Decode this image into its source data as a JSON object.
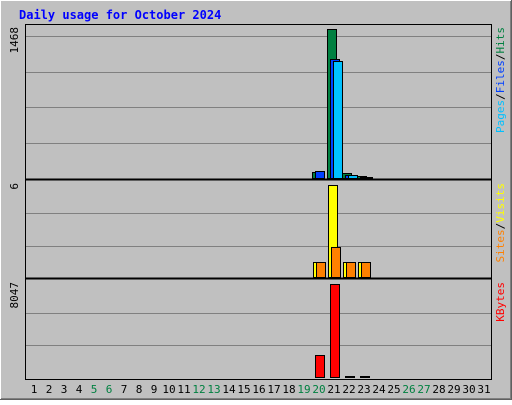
{
  "chart_data": {
    "type": "bar",
    "title": "Daily usage for October 2024",
    "categories": [
      "1",
      "2",
      "3",
      "4",
      "5",
      "6",
      "7",
      "8",
      "9",
      "10",
      "11",
      "12",
      "13",
      "14",
      "15",
      "16",
      "17",
      "18",
      "19",
      "20",
      "21",
      "22",
      "23",
      "24",
      "25",
      "26",
      "27",
      "28",
      "29",
      "30",
      "31"
    ],
    "weekend_days": [
      "5",
      "6",
      "12",
      "13",
      "19",
      "20",
      "26",
      "27"
    ],
    "panels": [
      {
        "name": "hits_files_pages",
        "ymax_label": "1468",
        "ylim": [
          0,
          1468
        ],
        "grid": true,
        "legend": [
          {
            "text": "Pages",
            "color": "#00c0ff"
          },
          {
            "text": "/",
            "color": "#000000"
          },
          {
            "text": "Files",
            "color": "#0040ff"
          },
          {
            "text": "/",
            "color": "#000000"
          },
          {
            "text": "Hits",
            "color": "#008040"
          }
        ],
        "series": [
          {
            "name": "Hits",
            "color": "#008040",
            "values": {
              "20": 70,
              "21": 1468,
              "22": 55,
              "23": 28
            }
          },
          {
            "name": "Files",
            "color": "#0040ff",
            "values": {
              "20": 80,
              "21": 1170,
              "22": 40,
              "23": 20
            }
          },
          {
            "name": "Pages",
            "color": "#00c0ff",
            "values": {
              "21": 1150,
              "22": 35,
              "23": 18
            }
          }
        ]
      },
      {
        "name": "sites_visits",
        "ymax_label": "6",
        "ylim": [
          0,
          6
        ],
        "grid": true,
        "legend": [
          {
            "text": "Sites",
            "color": "#ff8000"
          },
          {
            "text": "/",
            "color": "#000000"
          },
          {
            "text": "Visits",
            "color": "#ffff00"
          }
        ],
        "series": [
          {
            "name": "Visits",
            "color": "#ffff00",
            "values": {
              "20": 1,
              "21": 6,
              "22": 1,
              "23": 1
            }
          },
          {
            "name": "Sites",
            "color": "#ff8000",
            "values": {
              "20": 1,
              "21": 2,
              "22": 1,
              "23": 1
            }
          }
        ]
      },
      {
        "name": "kbytes",
        "ymax_label": "8047",
        "ylim": [
          0,
          8047
        ],
        "grid": true,
        "legend": [
          {
            "text": "KBytes",
            "color": "#ff0000"
          }
        ],
        "series": [
          {
            "name": "KBytes",
            "color": "#ff0000",
            "values": {
              "20": 1950,
              "21": 8047,
              "22": 180,
              "23": 90
            }
          }
        ]
      }
    ]
  },
  "colors": {
    "background": "#c0c0c0",
    "plot_background": "#c0c0c0",
    "grid": "#808080",
    "title": "#0000ff",
    "axis_text": "#000000",
    "weekend_text": "#008040"
  }
}
